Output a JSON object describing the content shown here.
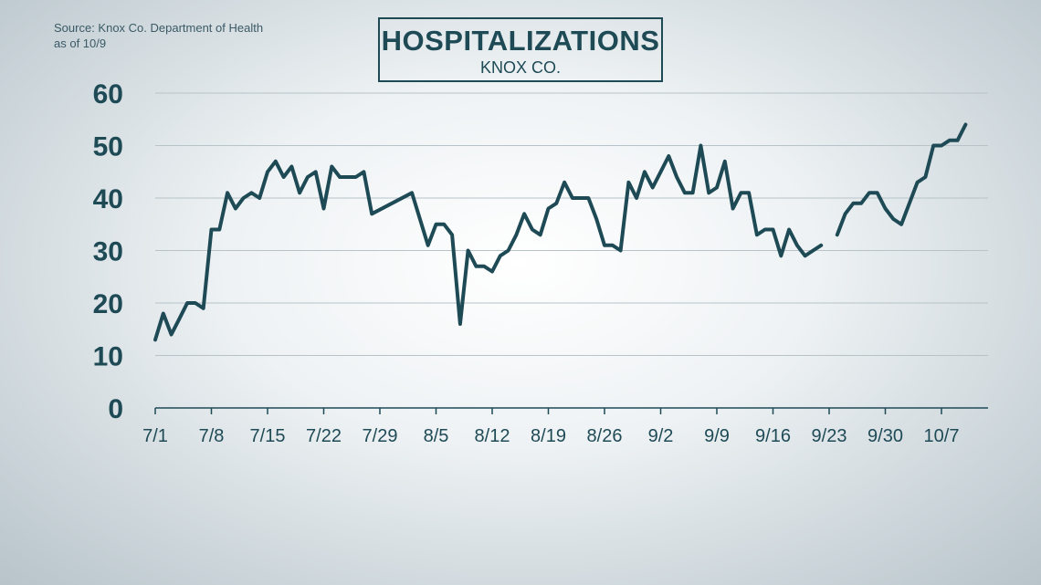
{
  "source": {
    "line1": "Source: Knox Co. Department of Health",
    "line2": "as of 10/9"
  },
  "header": {
    "title": "HOSPITALIZATIONS",
    "subtitle": "KNOX CO."
  },
  "colors": {
    "line": "#1e4a56",
    "grid": "#b7c3c8"
  },
  "chart_data": {
    "type": "line",
    "title": "HOSPITALIZATIONS",
    "subtitle": "KNOX CO.",
    "xlabel": "",
    "ylabel": "",
    "ylim": [
      0,
      60
    ],
    "yticks": [
      0,
      10,
      20,
      30,
      40,
      50,
      60
    ],
    "xticks": [
      "7/1",
      "7/8",
      "7/15",
      "7/22",
      "7/29",
      "8/5",
      "8/12",
      "8/19",
      "8/26",
      "9/2",
      "9/9",
      "9/16",
      "9/23",
      "9/30",
      "10/7"
    ],
    "x_range": [
      "7/1",
      "10/8"
    ],
    "grid": true,
    "legend": "none",
    "series": [
      {
        "segment": 1,
        "points": [
          [
            "7/1",
            13
          ],
          [
            "7/2",
            18
          ],
          [
            "7/3",
            14
          ],
          [
            "7/4",
            17
          ],
          [
            "7/5",
            20
          ],
          [
            "7/6",
            20
          ],
          [
            "7/7",
            19
          ],
          [
            "7/8",
            34
          ],
          [
            "7/9",
            34
          ],
          [
            "7/10",
            41
          ],
          [
            "7/11",
            38
          ],
          [
            "7/12",
            40
          ],
          [
            "7/13",
            41
          ],
          [
            "7/14",
            40
          ],
          [
            "7/15",
            45
          ],
          [
            "7/16",
            47
          ],
          [
            "7/17",
            44
          ],
          [
            "7/18",
            46
          ],
          [
            "7/19",
            41
          ],
          [
            "7/20",
            44
          ],
          [
            "7/21",
            45
          ],
          [
            "7/22",
            38
          ],
          [
            "7/23",
            46
          ],
          [
            "7/24",
            44
          ],
          [
            "7/25",
            44
          ],
          [
            "7/26",
            44
          ],
          [
            "7/27",
            45
          ],
          [
            "7/28",
            37
          ],
          [
            "8/2",
            41
          ],
          [
            "8/4",
            31
          ],
          [
            "8/5",
            35
          ],
          [
            "8/6",
            35
          ],
          [
            "8/7",
            33
          ],
          [
            "8/8",
            16
          ],
          [
            "8/9",
            30
          ],
          [
            "8/10",
            27
          ],
          [
            "8/11",
            27
          ],
          [
            "8/12",
            26
          ],
          [
            "8/13",
            29
          ],
          [
            "8/14",
            30
          ],
          [
            "8/15",
            33
          ],
          [
            "8/16",
            37
          ],
          [
            "8/17",
            34
          ],
          [
            "8/18",
            33
          ],
          [
            "8/19",
            38
          ],
          [
            "8/20",
            39
          ],
          [
            "8/21",
            43
          ],
          [
            "8/22",
            40
          ],
          [
            "8/23",
            40
          ],
          [
            "8/24",
            40
          ],
          [
            "8/25",
            36
          ],
          [
            "8/26",
            31
          ],
          [
            "8/27",
            31
          ],
          [
            "8/28",
            30
          ],
          [
            "8/29",
            43
          ],
          [
            "8/30",
            40
          ],
          [
            "8/31",
            45
          ],
          [
            "9/1",
            42
          ],
          [
            "9/2",
            45
          ],
          [
            "9/3",
            48
          ],
          [
            "9/4",
            44
          ],
          [
            "9/5",
            41
          ],
          [
            "9/6",
            41
          ],
          [
            "9/7",
            50
          ],
          [
            "9/8",
            41
          ],
          [
            "9/9",
            42
          ],
          [
            "9/10",
            47
          ],
          [
            "9/11",
            38
          ],
          [
            "9/12",
            41
          ],
          [
            "9/13",
            41
          ],
          [
            "9/14",
            33
          ],
          [
            "9/15",
            34
          ],
          [
            "9/16",
            34
          ],
          [
            "9/17",
            29
          ],
          [
            "9/18",
            34
          ],
          [
            "9/19",
            31
          ],
          [
            "9/20",
            29
          ],
          [
            "9/21",
            30
          ],
          [
            "9/22",
            31
          ]
        ]
      },
      {
        "segment": 2,
        "points": [
          [
            "9/24",
            33
          ],
          [
            "9/25",
            37
          ],
          [
            "9/26",
            39
          ],
          [
            "9/27",
            39
          ],
          [
            "9/28",
            41
          ],
          [
            "9/29",
            41
          ],
          [
            "9/30",
            38
          ],
          [
            "10/1",
            36
          ],
          [
            "10/2",
            35
          ],
          [
            "10/4",
            43
          ],
          [
            "10/5",
            44
          ],
          [
            "10/6",
            50
          ],
          [
            "10/7",
            50
          ],
          [
            "10/8",
            51
          ],
          [
            "10/9",
            51
          ],
          [
            "10/10",
            54
          ]
        ]
      }
    ]
  }
}
